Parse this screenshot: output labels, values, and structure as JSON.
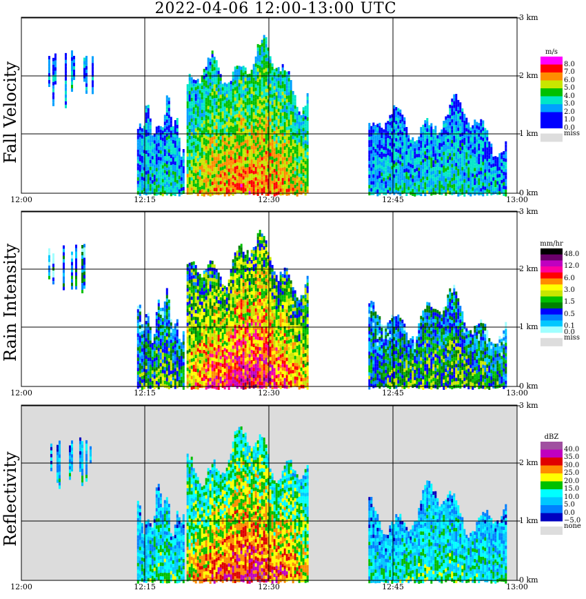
{
  "title": "2022-04-06  12:00-13:00 UTC",
  "chart_data": [
    {
      "type": "heatmap",
      "title": "Fall Velocity",
      "xlabel": "",
      "ylabel": "Fall Velocity",
      "x_ticks": [
        "12:00",
        "12:15",
        "12:30",
        "12:45",
        "13:00"
      ],
      "y_ticks": [
        "0 km",
        "1 km",
        "2 km",
        "3 km"
      ],
      "xlim": [
        "12:00",
        "13:00"
      ],
      "ylim_km": [
        0,
        3
      ],
      "grid": true,
      "legend": {
        "unit": "m/s",
        "entries": [
          {
            "label": "8.0",
            "color": "#ff00ff"
          },
          {
            "label": "7.0",
            "color": "#ff0000"
          },
          {
            "label": "6.0",
            "color": "#ff8c00"
          },
          {
            "label": "5.0",
            "color": "#c8e600"
          },
          {
            "label": "4.0",
            "color": "#00c000"
          },
          {
            "label": "3.0",
            "color": "#00e6c8"
          },
          {
            "label": "2.0",
            "color": "#00a0ff"
          },
          {
            "label": "1.0",
            "color": "#0000ff"
          },
          {
            "label": "0.0",
            "color": "#0000ff"
          }
        ],
        "missing": {
          "label": "miss",
          "color": "#dddddd"
        }
      },
      "echo_regions": [
        {
          "start": "12:03",
          "end": "12:09",
          "base_km": 1.45,
          "top_km": 2.5,
          "dominant": "1.0-2.0"
        },
        {
          "start": "12:14",
          "end": "12:20",
          "base_km": 0.0,
          "top_km": 1.3,
          "dominant": "2.0-4.0"
        },
        {
          "start": "12:20",
          "end": "12:35",
          "base_km": 0.0,
          "top_km": 2.3,
          "dominant": "3.0-6.0"
        },
        {
          "start": "12:42",
          "end": "12:59",
          "base_km": 0.0,
          "top_km": 1.3,
          "dominant": "1.0-3.0"
        }
      ]
    },
    {
      "type": "heatmap",
      "title": "Rain Intensity",
      "xlabel": "",
      "ylabel": "Rain Intensity",
      "x_ticks": [
        "12:00",
        "12:15",
        "12:30",
        "12:45",
        "13:00"
      ],
      "y_ticks": [
        "0 km",
        "1 km",
        "2 km",
        "3 km"
      ],
      "xlim": [
        "12:00",
        "13:00"
      ],
      "ylim_km": [
        0,
        3
      ],
      "grid": true,
      "legend": {
        "unit": "mm/hr",
        "entries": [
          {
            "label": "48.0",
            "color": "#000000"
          },
          {
            "label": "",
            "color": "#6a006a"
          },
          {
            "label": "12.0",
            "color": "#c000c0"
          },
          {
            "label": "",
            "color": "#ff00a0"
          },
          {
            "label": "6.0",
            "color": "#ff0000"
          },
          {
            "label": "",
            "color": "#ff8c00"
          },
          {
            "label": "3.0",
            "color": "#ffff00"
          },
          {
            "label": "",
            "color": "#c8e600"
          },
          {
            "label": "1.5",
            "color": "#00c000"
          },
          {
            "label": "",
            "color": "#008000"
          },
          {
            "label": "0.5",
            "color": "#0000ff"
          },
          {
            "label": "",
            "color": "#0080ff"
          },
          {
            "label": "0.1",
            "color": "#00c8ff"
          },
          {
            "label": "0.0",
            "color": "#a0ffff"
          }
        ],
        "missing": {
          "label": "miss",
          "color": "#dddddd"
        }
      },
      "echo_regions": [
        {
          "start": "12:03",
          "end": "12:09",
          "base_km": 1.45,
          "top_km": 2.5,
          "dominant": "0.1-0.5"
        },
        {
          "start": "12:14",
          "end": "12:20",
          "base_km": 0.0,
          "top_km": 1.3,
          "dominant": "0.1-1.5"
        },
        {
          "start": "12:20",
          "end": "12:35",
          "base_km": 0.0,
          "top_km": 2.3,
          "dominant": "3.0-12.0"
        },
        {
          "start": "12:42",
          "end": "12:59",
          "base_km": 0.0,
          "top_km": 1.3,
          "dominant": "0.0-1.5"
        }
      ]
    },
    {
      "type": "heatmap",
      "title": "Reflectivity",
      "xlabel": "",
      "ylabel": "Reflectivity",
      "x_ticks": [
        "12:00",
        "12:15",
        "12:30",
        "12:45",
        "13:00"
      ],
      "y_ticks": [
        "0 km",
        "1 km",
        "2 km",
        "3 km"
      ],
      "xlim": [
        "12:00",
        "13:00"
      ],
      "ylim_km": [
        0,
        3
      ],
      "grid": true,
      "legend": {
        "unit": "dBZ",
        "entries": [
          {
            "label": "40.0",
            "color": "#a050a0"
          },
          {
            "label": "35.0",
            "color": "#c000c0"
          },
          {
            "label": "30.0",
            "color": "#e00000"
          },
          {
            "label": "25.0",
            "color": "#ff8c00"
          },
          {
            "label": "20.0",
            "color": "#ffff00"
          },
          {
            "label": "15.0",
            "color": "#00c000"
          },
          {
            "label": "10.0",
            "color": "#00ffff"
          },
          {
            "label": "5.0",
            "color": "#00c8ff"
          },
          {
            "label": "0.0",
            "color": "#0080ff"
          },
          {
            "label": "−5.0",
            "color": "#0000c0"
          }
        ],
        "missing": {
          "label": "none",
          "color": "#dddddd"
        }
      },
      "echo_regions": [
        {
          "start": "12:03",
          "end": "12:09",
          "base_km": 1.45,
          "top_km": 2.5,
          "dominant": "5.0-15.0"
        },
        {
          "start": "12:14",
          "end": "12:20",
          "base_km": 0.0,
          "top_km": 1.3,
          "dominant": "5.0-15.0"
        },
        {
          "start": "12:20",
          "end": "12:35",
          "base_km": 0.0,
          "top_km": 2.3,
          "dominant": "20.0-35.0"
        },
        {
          "start": "12:42",
          "end": "12:59",
          "base_km": 0.0,
          "top_km": 1.3,
          "dominant": "5.0-25.0"
        }
      ]
    }
  ]
}
